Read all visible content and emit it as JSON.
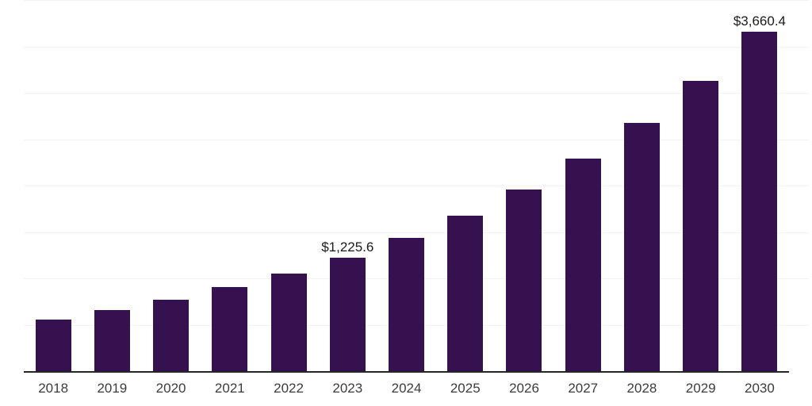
{
  "chart_data": {
    "type": "bar",
    "title": "",
    "xlabel": "",
    "ylabel": "",
    "categories": [
      "2018",
      "2019",
      "2020",
      "2021",
      "2022",
      "2023",
      "2024",
      "2025",
      "2026",
      "2027",
      "2028",
      "2029",
      "2030"
    ],
    "values": [
      554,
      657,
      768,
      904,
      1053,
      1225.6,
      1433,
      1676,
      1960,
      2291,
      2679,
      3131,
      3660.4
    ],
    "data_labels": [
      "",
      "",
      "",
      "",
      "",
      "$1,225.6",
      "",
      "",
      "",
      "",
      "",
      "",
      "$3,660.4"
    ],
    "labeled_points": [
      {
        "category": "2023",
        "value": 1225.6,
        "label": "$1,225.6"
      },
      {
        "category": "2030",
        "value": 3660.4,
        "label": "$3,660.4"
      }
    ],
    "ylim": [
      0,
      4000
    ],
    "grid_step": 500,
    "grid": "horizontal-only",
    "y_axis_tick_labels_visible": false,
    "legend": "none",
    "colors": {
      "bar": "#351150",
      "axis_line": "#262626",
      "gridline": "#f3f3f3",
      "value_label_text": "#1a1a1a",
      "tick_label_text": "#3c3c3c",
      "background": "#ffffff"
    }
  }
}
